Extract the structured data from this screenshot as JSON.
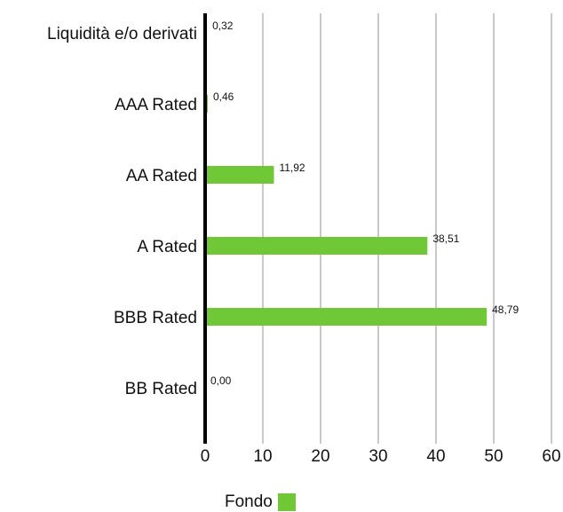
{
  "chart_data": {
    "type": "bar",
    "orientation": "horizontal",
    "categories": [
      "Liquidità e/o derivati",
      "AAA Rated",
      "AA Rated",
      "A Rated",
      "BBB Rated",
      "BB Rated"
    ],
    "series": [
      {
        "name": "Fondo",
        "values": [
          0.32,
          0.46,
          11.92,
          38.51,
          48.79,
          0.0
        ]
      }
    ],
    "data_labels": [
      "0,32",
      "0,46",
      "11,92",
      "38,51",
      "48,79",
      "0,00"
    ],
    "x_ticks": [
      "0",
      "10",
      "20",
      "30",
      "40",
      "50",
      "60"
    ],
    "xlim": [
      0,
      60
    ],
    "grid": true,
    "legend_position": "bottom",
    "colors": {
      "bar": "#71c837",
      "grid": "#c8c8c8",
      "axis": "#000000"
    }
  },
  "legend": {
    "label": "Fondo"
  }
}
